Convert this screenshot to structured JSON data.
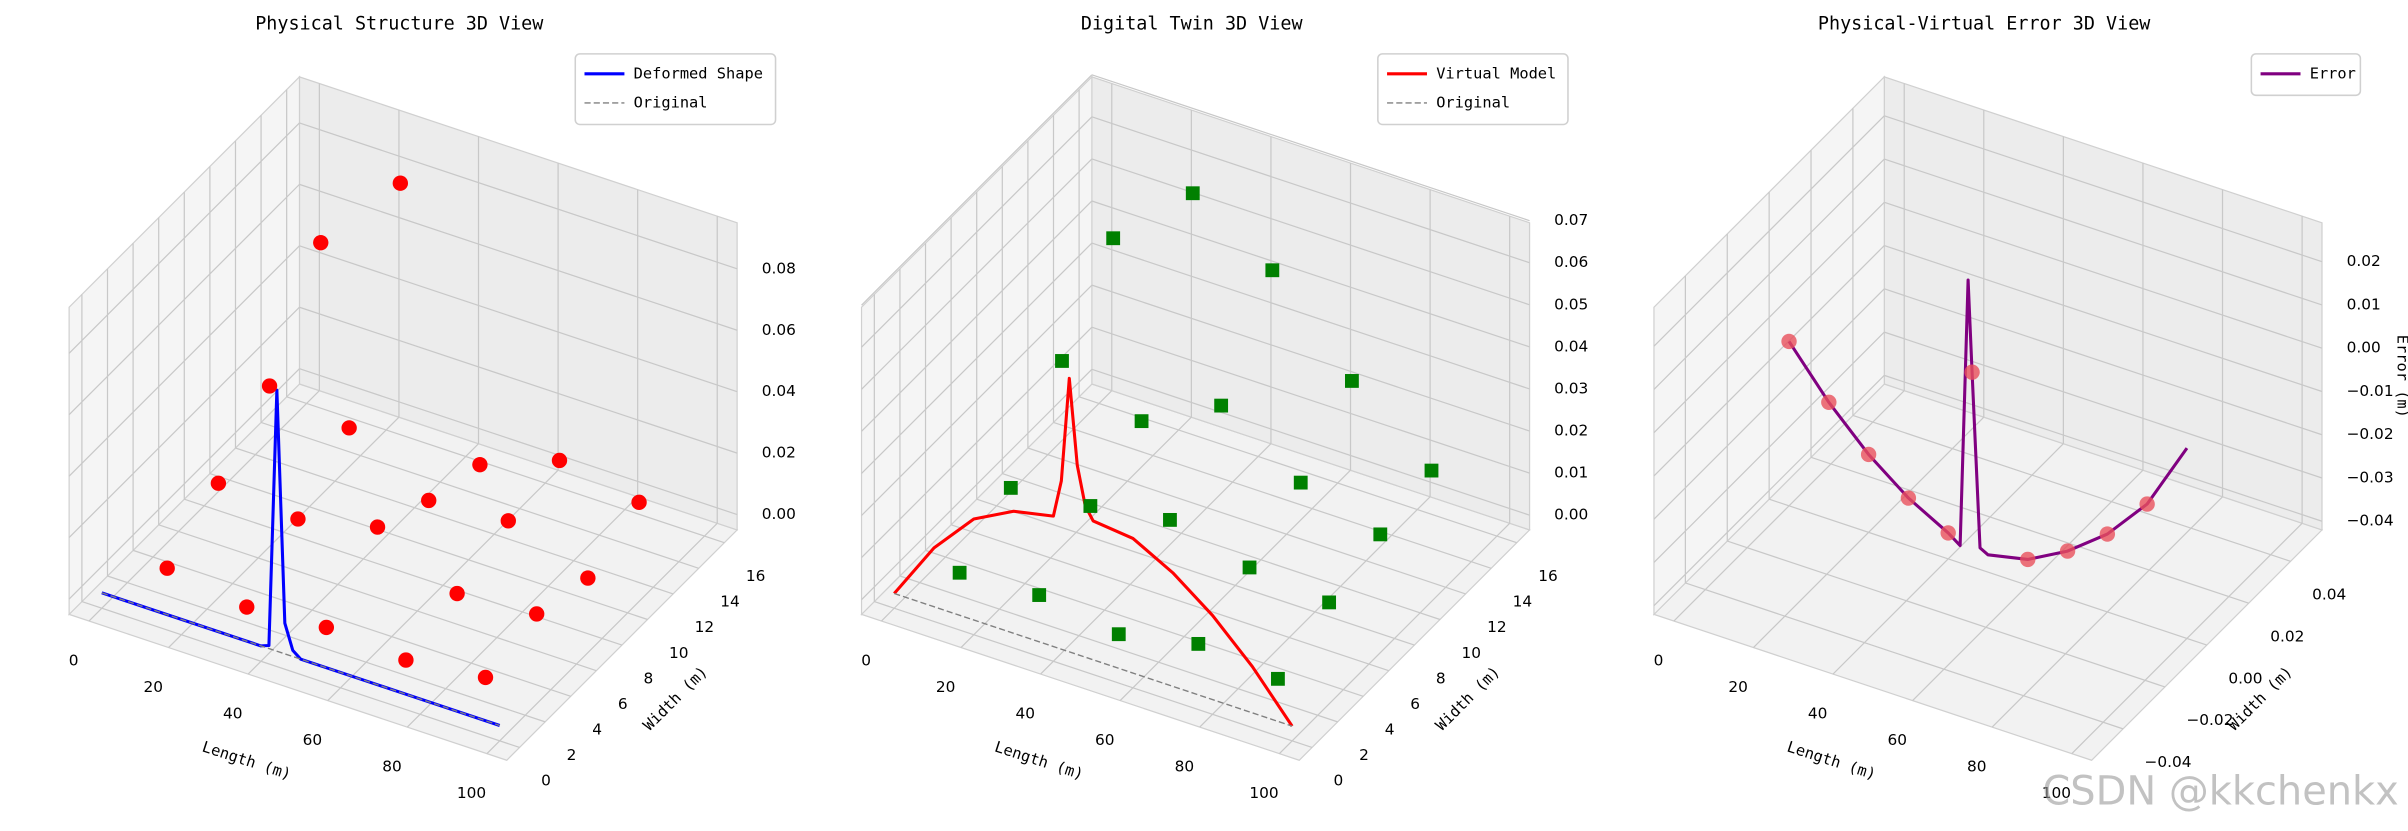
{
  "chart_data": [
    {
      "type": "3d",
      "title": "Physical Structure 3D View",
      "xlabel": "Length (m)",
      "ylabel": "Width (m)",
      "xlim": [
        -5,
        105
      ],
      "ylim": [
        -1,
        17
      ],
      "zlim": [
        -0.005,
        0.095
      ],
      "xticks": [
        0,
        20,
        40,
        60,
        80,
        100
      ],
      "yticks": [
        0,
        2,
        4,
        6,
        8,
        10,
        12,
        14,
        16
      ],
      "zticks": [
        {
          "value": 0,
          "label": "0.00"
        },
        {
          "value": 0.02,
          "label": "0.02"
        },
        {
          "value": 0.04,
          "label": "0.04"
        },
        {
          "value": 0.06,
          "label": "0.06"
        },
        {
          "value": 0.08,
          "label": "0.08"
        }
      ],
      "legend": "upper right",
      "series": [
        {
          "name": "Deformed Shape",
          "type": "line",
          "color": "#0000ff",
          "x": [
            0,
            10,
            20,
            30,
            40,
            42,
            44,
            46,
            48,
            50,
            60,
            70,
            80,
            90,
            100
          ],
          "y": [
            0,
            0,
            0,
            0,
            0,
            0,
            0,
            0,
            0,
            0,
            0,
            0,
            0,
            0,
            0
          ],
          "z": [
            0,
            0,
            0,
            0,
            0,
            0.001,
            0.085,
            0.01,
            0.002,
            0,
            0,
            0,
            0,
            0,
            0
          ]
        },
        {
          "name": "Original",
          "type": "line",
          "style": "dashed",
          "color": "#808080",
          "x": [
            0,
            100
          ],
          "y": [
            0,
            0
          ],
          "z": [
            0,
            0
          ]
        },
        {
          "type": "scatter",
          "marker": "circle",
          "color": "#ff0000",
          "x": [
            10,
            10,
            10,
            10,
            30,
            30,
            30,
            30,
            50,
            50,
            50,
            50,
            70,
            70,
            70,
            70,
            90,
            90,
            90,
            90
          ],
          "y": [
            2,
            6,
            10,
            14,
            2,
            6,
            10,
            14,
            2,
            6,
            10,
            14,
            2,
            6,
            10,
            14,
            2,
            6,
            10,
            14
          ],
          "z": [
            0.004,
            0.015,
            0.03,
            0.06,
            0,
            0.012,
            0.025,
            0.088,
            0.002,
            0.018,
            0.01,
            0.005,
            0,
            0.005,
            0.012,
            0.015,
            0.003,
            0.007,
            0.002,
            0.01
          ]
        }
      ]
    },
    {
      "type": "3d",
      "title": "Digital Twin 3D View",
      "xlabel": "Length (m)",
      "ylabel": "Width (m)",
      "xlim": [
        -5,
        105
      ],
      "ylim": [
        -1,
        17
      ],
      "zlim": [
        -0.0035,
        0.0695
      ],
      "xticks": [
        0,
        20,
        40,
        60,
        80,
        100
      ],
      "yticks": [
        0,
        2,
        4,
        6,
        8,
        10,
        12,
        14,
        16
      ],
      "zticks": [
        {
          "value": 0,
          "label": "0.00"
        },
        {
          "value": 0.01,
          "label": "0.01"
        },
        {
          "value": 0.02,
          "label": "0.02"
        },
        {
          "value": 0.03,
          "label": "0.03"
        },
        {
          "value": 0.04,
          "label": "0.04"
        },
        {
          "value": 0.05,
          "label": "0.05"
        },
        {
          "value": 0.06,
          "label": "0.06"
        },
        {
          "value": 0.07,
          "label": "0.07"
        }
      ],
      "legend": "upper right",
      "series": [
        {
          "name": "Virtual Model",
          "type": "line",
          "color": "#ff0000",
          "x": [
            0,
            10,
            20,
            30,
            40,
            42,
            44,
            46,
            48,
            50,
            60,
            70,
            80,
            90,
            100
          ],
          "y": [
            0,
            0,
            0,
            0,
            0,
            0,
            0,
            0,
            0,
            0,
            0,
            0,
            0,
            0,
            0
          ],
          "z": [
            0,
            0.014,
            0.024,
            0.029,
            0.031,
            0.04,
            0.065,
            0.045,
            0.036,
            0.033,
            0.032,
            0.027,
            0.02,
            0.011,
            0
          ]
        },
        {
          "name": "Original",
          "type": "line",
          "style": "dashed",
          "color": "#808080",
          "x": [
            0,
            100
          ],
          "y": [
            0,
            0
          ],
          "z": [
            0,
            0
          ]
        },
        {
          "type": "scatter",
          "marker": "square",
          "color": "#008000",
          "x": [
            10,
            10,
            10,
            10,
            30,
            30,
            30,
            30,
            50,
            50,
            50,
            50,
            70,
            70,
            70,
            70,
            90,
            90,
            90,
            90
          ],
          "y": [
            2,
            6,
            10,
            14,
            2,
            6,
            10,
            14,
            2,
            6,
            10,
            14,
            2,
            6,
            10,
            14,
            2,
            6,
            10,
            14
          ],
          "z": [
            0.002,
            0.01,
            0.028,
            0.045,
            0.003,
            0.012,
            0.02,
            0.062,
            0,
            0.015,
            0.03,
            0.05,
            0.004,
            0.01,
            0.018,
            0.03,
            0.002,
            0.008,
            0.012,
            0.015
          ]
        }
      ]
    },
    {
      "type": "3d",
      "title": "Physical-Virtual Error 3D View",
      "xlabel": "Length (m)",
      "ylabel": "Width (m)",
      "zlabel": "Error (m)",
      "xlim": [
        -5,
        105
      ],
      "ylim": [
        -0.055,
        0.055
      ],
      "zlim": [
        -0.042,
        0.029
      ],
      "xticks": [
        0,
        20,
        40,
        60,
        80,
        100
      ],
      "yticks": [
        {
          "value": -0.04,
          "label": "−0.04"
        },
        {
          "value": -0.02,
          "label": "−0.02"
        },
        {
          "value": 0,
          "label": "0.00"
        },
        {
          "value": 0.02,
          "label": "0.02"
        },
        {
          "value": 0.04,
          "label": "0.04"
        }
      ],
      "zticks": [
        {
          "value": -0.04,
          "label": "−0.04"
        },
        {
          "value": -0.03,
          "label": "−0.03"
        },
        {
          "value": -0.02,
          "label": "−0.02"
        },
        {
          "value": -0.01,
          "label": "−0.01"
        },
        {
          "value": 0,
          "label": "0.00"
        },
        {
          "value": 0.01,
          "label": "0.01"
        },
        {
          "value": 0.02,
          "label": "0.02"
        }
      ],
      "legend": "upper right",
      "series": [
        {
          "name": "Error",
          "type": "line",
          "color": "#800080",
          "x": [
            0,
            10,
            20,
            30,
            40,
            43,
            45,
            46,
            48,
            50,
            60,
            70,
            80,
            90,
            100
          ],
          "y": [
            0,
            0,
            0,
            0,
            0,
            0,
            0,
            0,
            0,
            0,
            0,
            0,
            0,
            0,
            0
          ],
          "z": [
            -0.004,
            -0.015,
            -0.024,
            -0.031,
            -0.036,
            -0.038,
            0.024,
            0.003,
            -0.037,
            -0.038,
            -0.036,
            -0.031,
            -0.024,
            -0.014,
            0.002
          ]
        },
        {
          "type": "scatter",
          "marker": "circle",
          "color": "#e8505b",
          "x": [
            0,
            10,
            20,
            30,
            40,
            46,
            60,
            70,
            80,
            90
          ],
          "y": [
            0,
            0,
            0,
            0,
            0,
            0,
            0,
            0,
            0,
            0
          ],
          "z": [
            -0.004,
            -0.015,
            -0.024,
            -0.031,
            -0.036,
            0.003,
            -0.036,
            -0.031,
            -0.024,
            -0.014
          ]
        }
      ]
    }
  ],
  "watermark": "CSDN @kkchenkx"
}
